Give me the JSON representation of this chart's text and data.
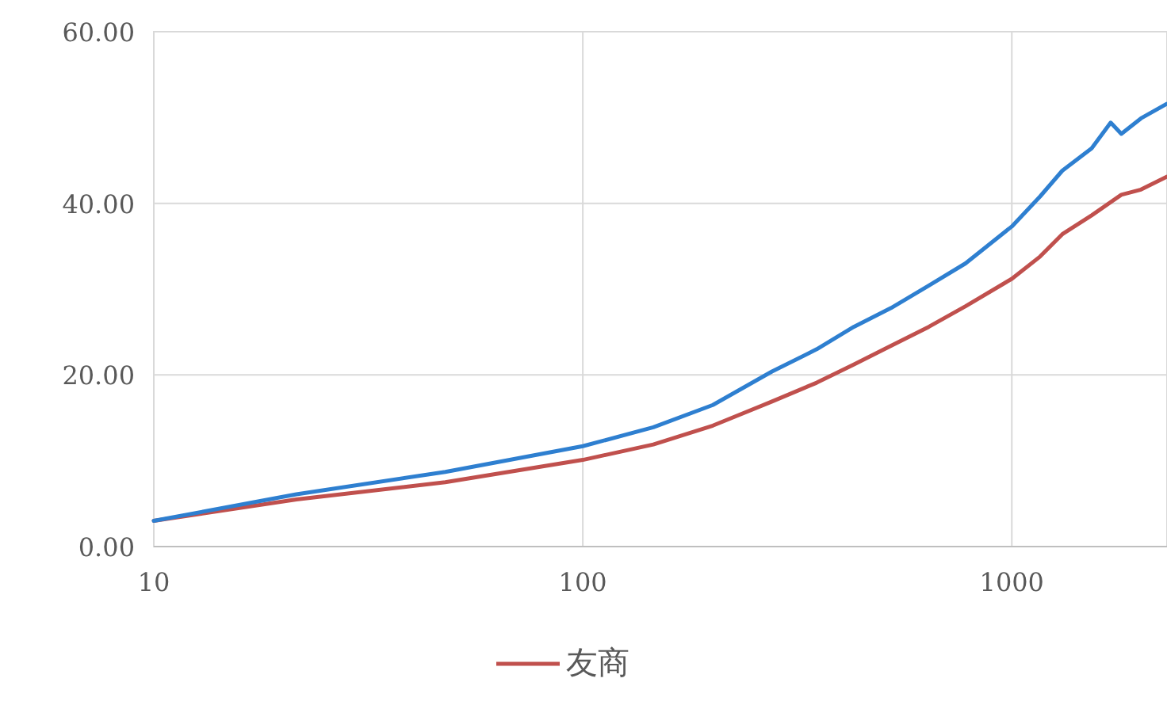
{
  "chart_data": {
    "type": "line",
    "log": "x",
    "grid": true,
    "legend": "bottom",
    "line_style": "solid",
    "xlim": [
      10,
      2300
    ],
    "xticks": [
      10,
      100,
      1000
    ],
    "ylim": [
      0,
      60
    ],
    "yticks": [
      {
        "value": 0,
        "label": "0.00"
      },
      {
        "value": 20,
        "label": "20.00"
      },
      {
        "value": 40,
        "label": "40.00"
      },
      {
        "value": 60,
        "label": "60.00"
      }
    ],
    "series": [
      {
        "name": "友商",
        "color": "#c0504d",
        "x": [
          10,
          21.5,
          47.8,
          100,
          146,
          201,
          276,
          351,
          428,
          523,
          640,
          780,
          1000,
          1164,
          1311,
          1535,
          1800,
          2000,
          2300
        ],
        "values": [
          3.0,
          5.5,
          7.5,
          10.1,
          11.9,
          14.1,
          16.9,
          19.1,
          21.2,
          23.4,
          25.6,
          28.0,
          31.2,
          33.8,
          36.4,
          38.6,
          41.0,
          41.6,
          43.1
        ]
      },
      {
        "color": "#2e7fd0",
        "x": [
          10,
          21.5,
          47.8,
          100,
          146,
          201,
          276,
          351,
          428,
          523,
          640,
          780,
          1000,
          1164,
          1311,
          1535,
          1700,
          1800,
          2000,
          2300
        ],
        "values": [
          3.0,
          6.1,
          8.7,
          11.7,
          13.9,
          16.5,
          20.4,
          23.0,
          25.6,
          27.8,
          30.4,
          33.0,
          37.3,
          40.8,
          43.8,
          46.4,
          49.4,
          48.1,
          49.9,
          51.6
        ]
      }
    ]
  }
}
